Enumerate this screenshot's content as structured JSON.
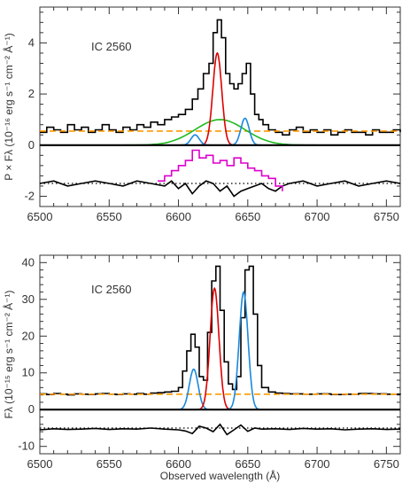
{
  "figure": {
    "xlabel": "Observed wavelength (Å)",
    "colors": {
      "observed": "#000000",
      "continuum": "#ff9900",
      "broad": "#22bb22",
      "narrow_center": "#dd0000",
      "narrow_side": "#1a88dd",
      "polarized_offset": "#dd00cc",
      "zero_line": "#000000"
    }
  },
  "chart_data": [
    {
      "type": "line",
      "object_label": "IC 2560",
      "ylabel": "P × Fλ (10⁻¹⁶ erg s⁻¹ cm⁻² Å⁻¹)",
      "xlim": [
        6500,
        6760
      ],
      "ylim": [
        -2.4,
        5.4
      ],
      "xticks": [
        6500,
        6550,
        6600,
        6650,
        6700,
        6750
      ],
      "yticks": [
        -2,
        0,
        2,
        4
      ],
      "continuum_level": 0.55,
      "residual_level": -1.5,
      "series": [
        {
          "key": "observed",
          "style": "step",
          "x": [
            6500,
            6505,
            6510,
            6515,
            6520,
            6525,
            6530,
            6535,
            6540,
            6545,
            6550,
            6555,
            6560,
            6565,
            6570,
            6575,
            6580,
            6585,
            6590,
            6595,
            6600,
            6605,
            6610,
            6614,
            6618,
            6622,
            6625,
            6628,
            6631,
            6634,
            6637,
            6640,
            6643,
            6646,
            6649,
            6652,
            6655,
            6658,
            6661,
            6665,
            6670,
            6675,
            6680,
            6685,
            6690,
            6695,
            6700,
            6705,
            6710,
            6715,
            6720,
            6725,
            6730,
            6735,
            6740,
            6745,
            6750,
            6755,
            6760
          ],
          "y": [
            0.5,
            0.7,
            0.6,
            0.5,
            0.8,
            0.6,
            0.7,
            0.5,
            0.6,
            0.8,
            0.6,
            0.5,
            0.7,
            0.6,
            0.8,
            0.7,
            0.9,
            0.8,
            1.0,
            1.1,
            1.2,
            1.4,
            1.8,
            2.2,
            2.8,
            3.2,
            4.4,
            4.9,
            4.2,
            2.8,
            2.4,
            2.2,
            2.4,
            2.8,
            3.2,
            2.0,
            1.2,
            1.0,
            0.8,
            0.6,
            0.5,
            0.4,
            0.6,
            0.7,
            0.5,
            0.6,
            0.5,
            0.6,
            0.4,
            0.5,
            0.6,
            0.5,
            0.5,
            0.4,
            0.6,
            0.5,
            0.5,
            0.6,
            0.5
          ]
        },
        {
          "key": "continuum",
          "style": "dashed",
          "x": [
            6500,
            6760
          ],
          "y": [
            0.55,
            0.55
          ]
        },
        {
          "key": "broad",
          "style": "gaussian",
          "center": 6630,
          "sigma": 18,
          "amplitude": 1.0,
          "baseline": 0
        },
        {
          "key": "narrow_center",
          "style": "gaussian",
          "center": 6628,
          "sigma": 3.2,
          "amplitude": 3.6,
          "baseline": 0
        },
        {
          "key": "narrow_side",
          "style": "gaussian",
          "center": 6612,
          "sigma": 3.0,
          "amplitude": 0.4,
          "baseline": 0
        },
        {
          "key": "narrow_side",
          "style": "gaussian",
          "center": 6648,
          "sigma": 3.0,
          "amplitude": 1.05,
          "baseline": 0
        },
        {
          "key": "zero_line",
          "style": "solid",
          "x": [
            6500,
            6760
          ],
          "y": [
            0,
            0
          ]
        },
        {
          "key": "residual_dotted",
          "style": "dotted",
          "x": [
            6500,
            6760
          ],
          "y": [
            -1.5,
            -1.5
          ]
        },
        {
          "key": "observed",
          "style": "smooth",
          "x": [
            6500,
            6510,
            6520,
            6530,
            6540,
            6550,
            6560,
            6570,
            6580,
            6590,
            6595,
            6600,
            6605,
            6610,
            6615,
            6620,
            6625,
            6630,
            6635,
            6640,
            6645,
            6650,
            6655,
            6660,
            6665,
            6670,
            6675,
            6680,
            6690,
            6700,
            6710,
            6720,
            6730,
            6740,
            6750,
            6760
          ],
          "y": [
            -1.5,
            -1.4,
            -1.6,
            -1.5,
            -1.4,
            -1.5,
            -1.6,
            -1.4,
            -1.5,
            -1.6,
            -1.4,
            -1.7,
            -1.5,
            -1.9,
            -1.6,
            -1.4,
            -1.5,
            -1.8,
            -1.6,
            -2.0,
            -1.8,
            -1.7,
            -1.6,
            -1.5,
            -1.7,
            -1.8,
            -1.6,
            -1.5,
            -1.4,
            -1.6,
            -1.5,
            -1.4,
            -1.6,
            -1.5,
            -1.4,
            -1.5
          ]
        },
        {
          "key": "polarized_offset",
          "style": "step",
          "x": [
            6585,
            6590,
            6595,
            6600,
            6605,
            6610,
            6615,
            6620,
            6625,
            6630,
            6635,
            6640,
            6645,
            6650,
            6655,
            6660,
            6665,
            6670,
            6675
          ],
          "y": [
            -1.4,
            -1.2,
            -1.0,
            -0.8,
            -0.6,
            -0.2,
            -0.5,
            -0.4,
            -0.7,
            -0.6,
            -0.8,
            -0.5,
            -0.7,
            -0.9,
            -1.0,
            -1.2,
            -1.3,
            -1.6,
            -1.8
          ]
        }
      ]
    },
    {
      "type": "line",
      "object_label": "IC 2560",
      "ylabel": "Fλ (10⁻¹⁵ erg s⁻¹ cm⁻² Å⁻¹)",
      "xlim": [
        6500,
        6760
      ],
      "ylim": [
        -12,
        42
      ],
      "xticks": [
        6500,
        6550,
        6600,
        6650,
        6700,
        6750
      ],
      "yticks": [
        -10,
        0,
        10,
        20,
        30,
        40
      ],
      "continuum_level": 4.2,
      "residual_level": -5,
      "series": [
        {
          "key": "observed",
          "style": "step",
          "x": [
            6500,
            6505,
            6510,
            6515,
            6520,
            6525,
            6530,
            6535,
            6540,
            6545,
            6550,
            6555,
            6560,
            6565,
            6570,
            6575,
            6580,
            6585,
            6590,
            6595,
            6600,
            6603,
            6606,
            6609,
            6612,
            6615,
            6618,
            6621,
            6624,
            6627,
            6630,
            6633,
            6636,
            6639,
            6642,
            6645,
            6648,
            6651,
            6654,
            6657,
            6660,
            6665,
            6670,
            6675,
            6680,
            6690,
            6700,
            6710,
            6720,
            6730,
            6740,
            6750,
            6760
          ],
          "y": [
            4.3,
            4.1,
            4.4,
            4.2,
            4.0,
            4.3,
            4.2,
            4.1,
            4.3,
            4.4,
            4.2,
            4.1,
            4.3,
            4.2,
            4.4,
            4.2,
            4.5,
            4.6,
            4.8,
            5.0,
            6.0,
            10.5,
            16.0,
            20.5,
            17.0,
            9.0,
            8.0,
            21.0,
            35.0,
            39.0,
            27.0,
            13.0,
            7.0,
            5.5,
            9.0,
            25.0,
            38.0,
            39.0,
            26.0,
            12.0,
            6.0,
            4.8,
            4.5,
            4.4,
            4.3,
            4.2,
            4.3,
            4.1,
            4.2,
            4.4,
            4.3,
            4.2,
            4.1
          ]
        },
        {
          "key": "continuum",
          "style": "dashed",
          "x": [
            6500,
            6760
          ],
          "y": [
            4.2,
            4.2
          ]
        },
        {
          "key": "narrow_side",
          "style": "gaussian",
          "center": 6611,
          "sigma": 3.2,
          "amplitude": 11,
          "baseline": 0
        },
        {
          "key": "narrow_center",
          "style": "gaussian",
          "center": 6626,
          "sigma": 3.2,
          "amplitude": 33,
          "baseline": 0
        },
        {
          "key": "narrow_side",
          "style": "gaussian",
          "center": 6647,
          "sigma": 3.2,
          "amplitude": 32,
          "baseline": 0
        },
        {
          "key": "zero_line",
          "style": "solid",
          "x": [
            6500,
            6760
          ],
          "y": [
            0,
            0
          ]
        },
        {
          "key": "residual_dotted",
          "style": "dotted",
          "x": [
            6500,
            6760
          ],
          "y": [
            -5,
            -5
          ]
        },
        {
          "key": "observed",
          "style": "smooth",
          "x": [
            6500,
            6510,
            6520,
            6530,
            6540,
            6550,
            6560,
            6570,
            6580,
            6590,
            6600,
            6605,
            6610,
            6615,
            6620,
            6625,
            6630,
            6635,
            6640,
            6645,
            6650,
            6655,
            6660,
            6670,
            6680,
            6690,
            6700,
            6710,
            6720,
            6730,
            6740,
            6750,
            6760
          ],
          "y": [
            -5.5,
            -5.2,
            -5.4,
            -5.3,
            -5.1,
            -5.4,
            -5.2,
            -5.3,
            -5.0,
            -5.3,
            -5.5,
            -5.8,
            -6.5,
            -4.5,
            -5.0,
            -6.0,
            -4.0,
            -6.8,
            -5.5,
            -4.2,
            -5.9,
            -5.0,
            -5.3,
            -5.2,
            -5.4,
            -5.1,
            -5.3,
            -5.2,
            -5.5,
            -5.3,
            -5.2,
            -5.4,
            -5.3
          ]
        }
      ]
    }
  ]
}
